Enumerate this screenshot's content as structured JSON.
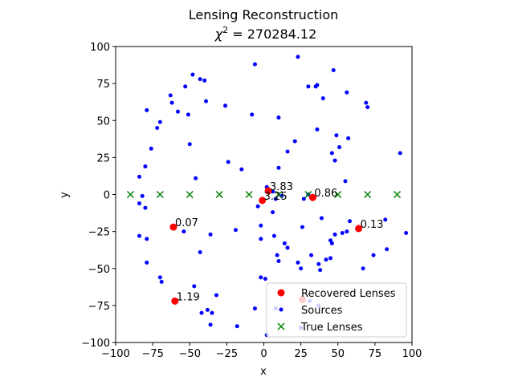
{
  "chart_data": {
    "type": "scatter",
    "title_line1": "Lensing Reconstruction",
    "title_line2_prefix": "χ",
    "title_line2_sup": "2",
    "title_line2_suffix": " = 270284.12",
    "xlabel": "x",
    "ylabel": "y",
    "xlim": [
      -100,
      100
    ],
    "ylim": [
      -100,
      100
    ],
    "xticks": [
      -100,
      -75,
      -50,
      -25,
      0,
      25,
      50,
      75,
      100
    ],
    "yticks": [
      -100,
      -75,
      -50,
      -25,
      0,
      25,
      50,
      75,
      100
    ],
    "xtick_labels": [
      "−100",
      "−75",
      "−50",
      "−25",
      "0",
      "25",
      "50",
      "75",
      "100"
    ],
    "ytick_labels": [
      "−100",
      "−75",
      "−50",
      "−25",
      "0",
      "25",
      "50",
      "75",
      "100"
    ],
    "grid": false,
    "legend_position": "lower-right",
    "series": [
      {
        "name": "Recovered Lenses",
        "marker": "circle",
        "color": "#ff0000",
        "points": [
          {
            "x": 3,
            "y": 2.5,
            "label": "3.83"
          },
          {
            "x": -1,
            "y": -4,
            "label": "3.25"
          },
          {
            "x": 33,
            "y": -2,
            "label": "0.86"
          },
          {
            "x": 64,
            "y": -23,
            "label": "0.13"
          },
          {
            "x": -61,
            "y": -22,
            "label": "0.07"
          },
          {
            "x": -60,
            "y": -72,
            "label": "1.19"
          },
          {
            "x": 26,
            "y": -71,
            "label": ""
          }
        ]
      },
      {
        "name": "Sources",
        "marker": "dot",
        "color": "#0000ff",
        "points": [
          {
            "x": -48,
            "y": 81
          },
          {
            "x": -43,
            "y": 78
          },
          {
            "x": -40,
            "y": 77
          },
          {
            "x": -6,
            "y": 88
          },
          {
            "x": 23,
            "y": 93
          },
          {
            "x": 47,
            "y": 84
          },
          {
            "x": -53,
            "y": 73
          },
          {
            "x": -63,
            "y": 67
          },
          {
            "x": -62,
            "y": 62
          },
          {
            "x": -39,
            "y": 63
          },
          {
            "x": -26,
            "y": 60
          },
          {
            "x": 30,
            "y": 73
          },
          {
            "x": 35,
            "y": 73
          },
          {
            "x": 36,
            "y": 74
          },
          {
            "x": 56,
            "y": 69
          },
          {
            "x": 69,
            "y": 62
          },
          {
            "x": 70,
            "y": 59
          },
          {
            "x": 40,
            "y": 65
          },
          {
            "x": -79,
            "y": 57
          },
          {
            "x": -58,
            "y": 56
          },
          {
            "x": -51,
            "y": 54
          },
          {
            "x": -8,
            "y": 54
          },
          {
            "x": 10,
            "y": 52
          },
          {
            "x": -70,
            "y": 49
          },
          {
            "x": -72,
            "y": 45
          },
          {
            "x": 36,
            "y": 44
          },
          {
            "x": 49,
            "y": 40
          },
          {
            "x": 57,
            "y": 38
          },
          {
            "x": 21,
            "y": 36
          },
          {
            "x": 16,
            "y": 29
          },
          {
            "x": -50,
            "y": 34
          },
          {
            "x": -76,
            "y": 31
          },
          {
            "x": 51,
            "y": 32
          },
          {
            "x": 46,
            "y": 28
          },
          {
            "x": 92,
            "y": 28
          },
          {
            "x": 48,
            "y": 23
          },
          {
            "x": -80,
            "y": 19
          },
          {
            "x": -84,
            "y": 12
          },
          {
            "x": -46,
            "y": 11
          },
          {
            "x": -24,
            "y": 22
          },
          {
            "x": -15,
            "y": 17
          },
          {
            "x": 10,
            "y": 18
          },
          {
            "x": 55,
            "y": 9
          },
          {
            "x": 2,
            "y": 5
          },
          {
            "x": 6,
            "y": 2
          },
          {
            "x": 8,
            "y": -3
          },
          {
            "x": 12,
            "y": -1
          },
          {
            "x": 30,
            "y": 0
          },
          {
            "x": -82,
            "y": -1
          },
          {
            "x": -84,
            "y": -6
          },
          {
            "x": -80,
            "y": -9
          },
          {
            "x": -4,
            "y": -8
          },
          {
            "x": 6,
            "y": -12
          },
          {
            "x": 27,
            "y": -3
          },
          {
            "x": 39,
            "y": -16
          },
          {
            "x": 58,
            "y": -18
          },
          {
            "x": 82,
            "y": -17
          },
          {
            "x": -2,
            "y": -21
          },
          {
            "x": 26,
            "y": -22
          },
          {
            "x": 45,
            "y": -31
          },
          {
            "x": 53,
            "y": -26
          },
          {
            "x": 48,
            "y": -27
          },
          {
            "x": 56,
            "y": -25
          },
          {
            "x": 96,
            "y": -26
          },
          {
            "x": -54,
            "y": -25
          },
          {
            "x": -84,
            "y": -28
          },
          {
            "x": -79,
            "y": -30
          },
          {
            "x": -36,
            "y": -27
          },
          {
            "x": -19,
            "y": -24
          },
          {
            "x": -2,
            "y": -30
          },
          {
            "x": 7,
            "y": -28
          },
          {
            "x": 16,
            "y": -36
          },
          {
            "x": 14,
            "y": -33
          },
          {
            "x": 9,
            "y": -41
          },
          {
            "x": 10,
            "y": -45
          },
          {
            "x": 23,
            "y": -46
          },
          {
            "x": 32,
            "y": -41
          },
          {
            "x": 37,
            "y": -47
          },
          {
            "x": 42,
            "y": -44
          },
          {
            "x": 45,
            "y": -43
          },
          {
            "x": 46,
            "y": -33
          },
          {
            "x": 74,
            "y": -41
          },
          {
            "x": 83,
            "y": -37
          },
          {
            "x": 67,
            "y": -50
          },
          {
            "x": 38,
            "y": -51
          },
          {
            "x": -79,
            "y": -46
          },
          {
            "x": -43,
            "y": -39
          },
          {
            "x": 25,
            "y": -50
          },
          {
            "x": -70,
            "y": -56
          },
          {
            "x": -69,
            "y": -59
          },
          {
            "x": -47,
            "y": -62
          },
          {
            "x": -2,
            "y": -56
          },
          {
            "x": 1,
            "y": -57
          },
          {
            "x": -32,
            "y": -68
          },
          {
            "x": 31,
            "y": -72
          },
          {
            "x": 37,
            "y": -75
          },
          {
            "x": -6,
            "y": -77
          },
          {
            "x": 8,
            "y": -77
          },
          {
            "x": -42,
            "y": -80
          },
          {
            "x": -38,
            "y": -78
          },
          {
            "x": -35,
            "y": -80
          },
          {
            "x": -36,
            "y": -88
          },
          {
            "x": -18,
            "y": -89
          },
          {
            "x": 2,
            "y": -95
          },
          {
            "x": 25,
            "y": -90
          }
        ]
      },
      {
        "name": "True Lenses",
        "marker": "x",
        "color": "#008000",
        "points": [
          {
            "x": -90,
            "y": 0
          },
          {
            "x": -70,
            "y": 0
          },
          {
            "x": -50,
            "y": 0
          },
          {
            "x": -30,
            "y": 0
          },
          {
            "x": -10,
            "y": 0
          },
          {
            "x": 10,
            "y": 0
          },
          {
            "x": 30,
            "y": 0
          },
          {
            "x": 50,
            "y": 0
          },
          {
            "x": 70,
            "y": 0
          },
          {
            "x": 90,
            "y": 0
          }
        ]
      }
    ]
  }
}
